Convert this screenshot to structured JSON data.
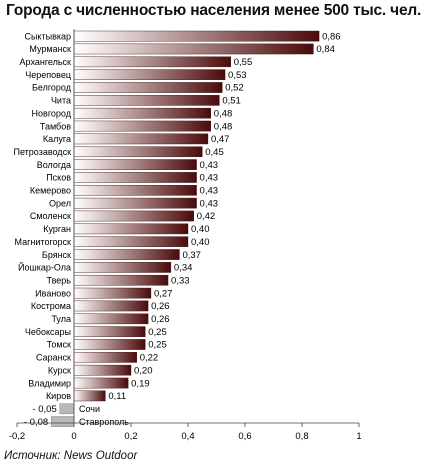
{
  "title": "Города с численностью населения менее 500 тыс. чел.",
  "source": "Источник: News Outdoor",
  "colors": {
    "bar_dark": "#4a0a0a",
    "bar_light": "#ffffff",
    "negative_bar": "#b8b8b8"
  },
  "chart_data": {
    "type": "bar",
    "orientation": "horizontal",
    "title": "Города с численностью населения менее 500 тыс. чел.",
    "categories": [
      "Сыктывкар",
      "Мурманск",
      "Архангельск",
      "Череповец",
      "Белгород",
      "Чита",
      "Новгород",
      "Тамбов",
      "Калуга",
      "Петрозаводск",
      "Вологда",
      "Псков",
      "Кемерово",
      "Орел",
      "Смоленск",
      "Курган",
      "Магнитогорск",
      "Брянск",
      "Йошкар-Ола",
      "Тверь",
      "Иваново",
      "Кострома",
      "Тула",
      "Чебоксары",
      "Томск",
      "Саранск",
      "Курск",
      "Владимир",
      "Киров",
      "Сочи",
      "Ставрополь"
    ],
    "values": [
      0.86,
      0.84,
      0.55,
      0.53,
      0.52,
      0.51,
      0.48,
      0.48,
      0.47,
      0.45,
      0.43,
      0.43,
      0.43,
      0.43,
      0.42,
      0.4,
      0.4,
      0.37,
      0.34,
      0.33,
      0.27,
      0.26,
      0.26,
      0.25,
      0.25,
      0.22,
      0.2,
      0.19,
      0.11,
      -0.05,
      -0.08
    ],
    "value_labels": [
      "0,86",
      "0,84",
      "0,55",
      "0,53",
      "0,52",
      "0,51",
      "0,48",
      "0,48",
      "0,47",
      "0,45",
      "0,43",
      "0,43",
      "0,43",
      "0,43",
      "0,42",
      "0,40",
      "0,40",
      "0,37",
      "0,34",
      "0,33",
      "0,27",
      "0,26",
      "0,26",
      "0,25",
      "0,25",
      "0,22",
      "0,20",
      "0,19",
      "0,11",
      "- 0,05",
      "- 0,08"
    ],
    "xlim": [
      -0.2,
      1.0
    ],
    "ticks": [
      -0.2,
      0,
      0.2,
      0.4,
      0.6,
      0.8,
      1
    ],
    "tick_labels": [
      "-0,2",
      "0",
      "0,2",
      "0,4",
      "0,6",
      "0,8",
      "1"
    ],
    "grid": false
  }
}
